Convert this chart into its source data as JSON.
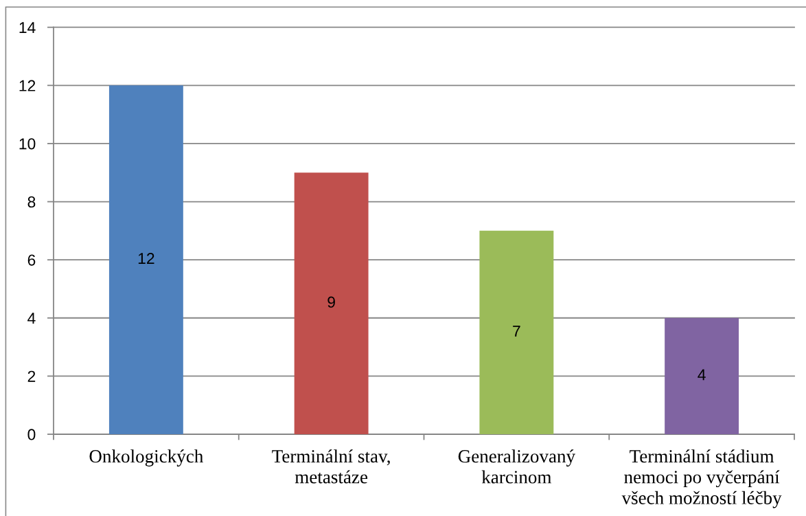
{
  "chart_data": {
    "type": "bar",
    "categories": [
      "Onkologických",
      "Terminální stav, metastáze",
      "Generalizovaný karcinom",
      "Terminální stádium nemoci po vyčerpání všech možností léčby"
    ],
    "values": [
      12,
      9,
      7,
      4
    ],
    "colors": [
      "#4f81bd",
      "#c0504d",
      "#9bbb59",
      "#8064a2"
    ],
    "ylim": [
      0,
      14
    ],
    "yticks": [
      0,
      2,
      4,
      6,
      8,
      10,
      12,
      14
    ],
    "grid": "y",
    "data_labels": true
  }
}
